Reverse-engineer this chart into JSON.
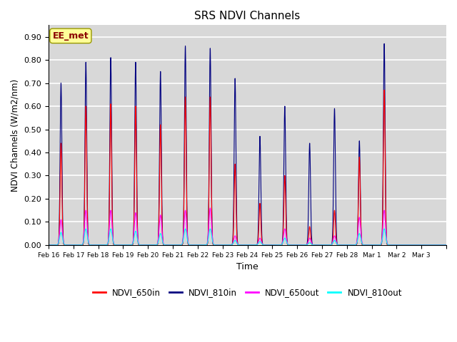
{
  "title": "SRS NDVI Channels",
  "xlabel": "Time",
  "ylabel": "NDVI Channels (W/m2/nm)",
  "ylim": [
    0.0,
    0.95
  ],
  "yticks": [
    0.0,
    0.1,
    0.2,
    0.3,
    0.4,
    0.5,
    0.6,
    0.7,
    0.8,
    0.9
  ],
  "annotation_text": "EE_met",
  "annotation_color": "#8B0000",
  "annotation_bg": "#FFFF99",
  "colors": {
    "NDVI_650in": "red",
    "NDVI_810in": "navy",
    "NDVI_650out": "magenta",
    "NDVI_810out": "cyan"
  },
  "line_width": 0.8,
  "plot_bg": "#d8d8d8",
  "grid_color": "white",
  "x_tick_labels": [
    "Feb 16",
    "Feb 17",
    "Feb 18",
    "Feb 19",
    "Feb 20",
    "Feb 21",
    "Feb 22",
    "Feb 23",
    "Feb 24",
    "Feb 25",
    "Feb 26",
    "Feb 27",
    "Feb 28",
    "Mar 1",
    "Mar 2",
    "Mar 3"
  ],
  "peaks_810in": [
    0.7,
    0.79,
    0.81,
    0.79,
    0.75,
    0.86,
    0.85,
    0.72,
    0.47,
    0.6,
    0.44,
    0.59,
    0.45,
    0.87,
    0.0,
    0.0
  ],
  "peaks_650in": [
    0.44,
    0.6,
    0.61,
    0.6,
    0.52,
    0.64,
    0.64,
    0.35,
    0.18,
    0.3,
    0.08,
    0.15,
    0.38,
    0.67,
    0.0,
    0.0
  ],
  "peaks_650out": [
    0.11,
    0.15,
    0.15,
    0.14,
    0.13,
    0.15,
    0.16,
    0.04,
    0.03,
    0.07,
    0.03,
    0.04,
    0.12,
    0.15,
    0.0,
    0.0
  ],
  "peaks_810out": [
    0.055,
    0.07,
    0.07,
    0.06,
    0.05,
    0.07,
    0.07,
    0.02,
    0.015,
    0.03,
    0.01,
    0.02,
    0.05,
    0.07,
    0.0,
    0.0
  ],
  "n_days": 16,
  "pts_per_day": 200
}
